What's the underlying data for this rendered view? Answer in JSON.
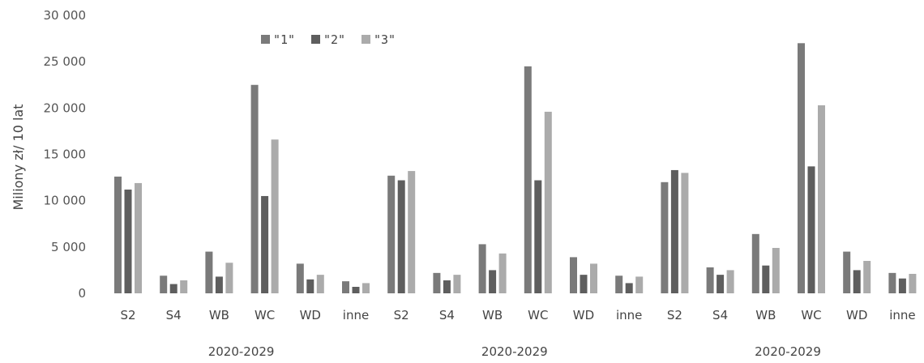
{
  "chart_data": {
    "type": "bar",
    "ylabel": "Miliony zł/ 10 lat",
    "xlabel": "",
    "ylim": [
      0,
      30000
    ],
    "yticks": [
      {
        "value": 0,
        "label": "0"
      },
      {
        "value": 5000,
        "label": "5 000"
      },
      {
        "value": 10000,
        "label": "10 000"
      },
      {
        "value": 15000,
        "label": "15 000"
      },
      {
        "value": 20000,
        "label": "20 000"
      },
      {
        "value": 25000,
        "label": "25 000"
      },
      {
        "value": 30000,
        "label": "30 000"
      }
    ],
    "grid": false,
    "legend": "top-left",
    "groups": [
      {
        "label": "2020-2029",
        "categories": [
          "S2",
          "S4",
          "WB",
          "WC",
          "WD",
          "inne"
        ]
      },
      {
        "label": "2020-2029",
        "categories": [
          "S2",
          "S4",
          "WB",
          "WC",
          "WD",
          "inne"
        ]
      },
      {
        "label": "2020-2029",
        "categories": [
          "S2",
          "S4",
          "WB",
          "WC",
          "WD",
          "inne"
        ]
      }
    ],
    "categories": [
      "S2",
      "S4",
      "WB",
      "WC",
      "WD",
      "inne",
      "S2",
      "S4",
      "WB",
      "WC",
      "WD",
      "inne",
      "S2",
      "S4",
      "WB",
      "WC",
      "WD",
      "inne"
    ],
    "series": [
      {
        "name": "\"1\"",
        "color": "#7a7a7a",
        "values": [
          12600,
          1900,
          4500,
          22500,
          3200,
          1300,
          12700,
          2200,
          5300,
          24500,
          3900,
          1900,
          12000,
          2800,
          6400,
          27000,
          4500,
          2200
        ]
      },
      {
        "name": "\"2\"",
        "color": "#5e5e5e",
        "values": [
          11200,
          1000,
          1800,
          10500,
          1500,
          700,
          12200,
          1400,
          2500,
          12200,
          2000,
          1100,
          13300,
          2000,
          3000,
          13700,
          2500,
          1600
        ]
      },
      {
        "name": "\"3\"",
        "color": "#ababab",
        "values": [
          11900,
          1400,
          3300,
          16600,
          2000,
          1100,
          13200,
          2000,
          4300,
          19600,
          3200,
          1800,
          13000,
          2500,
          4900,
          20300,
          3500,
          2100
        ]
      }
    ]
  }
}
